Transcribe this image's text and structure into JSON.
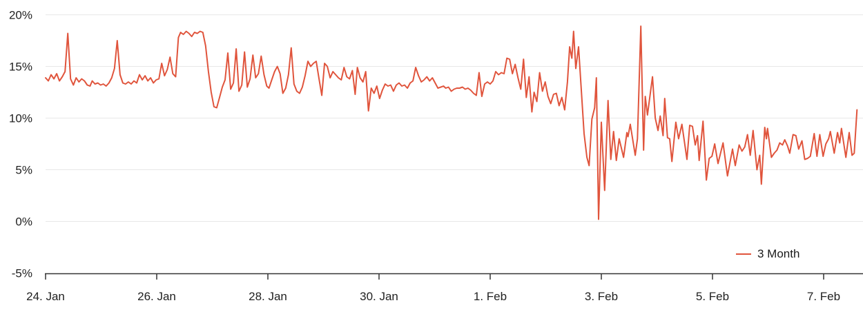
{
  "chart_data": {
    "type": "line",
    "title": "",
    "x_axis": {
      "unit": "days since 24 Jan 00:00",
      "range": [
        0,
        14.71
      ],
      "ticks": [
        {
          "t": 0,
          "label": "24. Jan"
        },
        {
          "t": 2,
          "label": "26. Jan"
        },
        {
          "t": 4,
          "label": "28. Jan"
        },
        {
          "t": 6,
          "label": "30. Jan"
        },
        {
          "t": 8,
          "label": "1. Feb"
        },
        {
          "t": 10,
          "label": "3. Feb"
        },
        {
          "t": 12,
          "label": "5. Feb"
        },
        {
          "t": 14,
          "label": "7. Feb"
        }
      ]
    },
    "y_axis": {
      "unit": "%",
      "range": [
        -5,
        20
      ],
      "gridlines_at": [
        20,
        15,
        10,
        5,
        0
      ],
      "ticks": [
        {
          "v": 20,
          "label": "20%"
        },
        {
          "v": 15,
          "label": "15%"
        },
        {
          "v": 10,
          "label": "10%"
        },
        {
          "v": 5,
          "label": "5%"
        },
        {
          "v": 0,
          "label": "0%"
        },
        {
          "v": -5,
          "label": "-5%"
        }
      ]
    },
    "legend": {
      "position": "bottom-right",
      "items": [
        {
          "label": "3 Month",
          "color": "#e0543c"
        }
      ]
    },
    "colors": {
      "series": "#e0543c",
      "gridline": "#e7e7e7",
      "axis": "#333333",
      "label": "#212121",
      "background": "#ffffff"
    },
    "series": [
      {
        "name": "3 Month",
        "color": "#e0543c",
        "points": [
          [
            0.0,
            13.9
          ],
          [
            0.05,
            13.6
          ],
          [
            0.1,
            14.2
          ],
          [
            0.15,
            13.8
          ],
          [
            0.2,
            14.3
          ],
          [
            0.25,
            13.6
          ],
          [
            0.3,
            14.0
          ],
          [
            0.35,
            14.5
          ],
          [
            0.4,
            18.2
          ],
          [
            0.45,
            13.8
          ],
          [
            0.5,
            13.2
          ],
          [
            0.55,
            13.9
          ],
          [
            0.6,
            13.5
          ],
          [
            0.65,
            13.8
          ],
          [
            0.7,
            13.6
          ],
          [
            0.75,
            13.2
          ],
          [
            0.8,
            13.1
          ],
          [
            0.84,
            13.6
          ],
          [
            0.89,
            13.3
          ],
          [
            0.94,
            13.4
          ],
          [
            0.99,
            13.2
          ],
          [
            1.04,
            13.3
          ],
          [
            1.09,
            13.1
          ],
          [
            1.14,
            13.4
          ],
          [
            1.19,
            13.9
          ],
          [
            1.24,
            14.8
          ],
          [
            1.29,
            17.5
          ],
          [
            1.34,
            14.2
          ],
          [
            1.39,
            13.4
          ],
          [
            1.44,
            13.3
          ],
          [
            1.49,
            13.5
          ],
          [
            1.54,
            13.3
          ],
          [
            1.59,
            13.6
          ],
          [
            1.64,
            13.4
          ],
          [
            1.69,
            14.2
          ],
          [
            1.74,
            13.7
          ],
          [
            1.79,
            14.1
          ],
          [
            1.84,
            13.6
          ],
          [
            1.89,
            13.9
          ],
          [
            1.94,
            13.4
          ],
          [
            1.99,
            13.7
          ],
          [
            2.04,
            13.8
          ],
          [
            2.09,
            15.3
          ],
          [
            2.14,
            14.1
          ],
          [
            2.19,
            14.7
          ],
          [
            2.24,
            15.9
          ],
          [
            2.29,
            14.3
          ],
          [
            2.34,
            14.0
          ],
          [
            2.39,
            17.8
          ],
          [
            2.43,
            18.3
          ],
          [
            2.48,
            18.1
          ],
          [
            2.53,
            18.4
          ],
          [
            2.58,
            18.2
          ],
          [
            2.63,
            17.9
          ],
          [
            2.68,
            18.3
          ],
          [
            2.73,
            18.2
          ],
          [
            2.78,
            18.4
          ],
          [
            2.83,
            18.3
          ],
          [
            2.88,
            17.0
          ],
          [
            2.93,
            14.5
          ],
          [
            2.98,
            12.5
          ],
          [
            3.03,
            11.1
          ],
          [
            3.08,
            11.0
          ],
          [
            3.13,
            12.0
          ],
          [
            3.18,
            13.0
          ],
          [
            3.23,
            13.7
          ],
          [
            3.28,
            16.3
          ],
          [
            3.33,
            12.8
          ],
          [
            3.38,
            13.4
          ],
          [
            3.43,
            16.7
          ],
          [
            3.48,
            12.6
          ],
          [
            3.53,
            13.2
          ],
          [
            3.58,
            16.4
          ],
          [
            3.63,
            13.0
          ],
          [
            3.68,
            13.8
          ],
          [
            3.73,
            16.1
          ],
          [
            3.78,
            13.9
          ],
          [
            3.83,
            14.3
          ],
          [
            3.88,
            16.0
          ],
          [
            3.93,
            14.2
          ],
          [
            3.98,
            13.1
          ],
          [
            4.02,
            12.9
          ],
          [
            4.07,
            13.7
          ],
          [
            4.12,
            14.5
          ],
          [
            4.17,
            15.0
          ],
          [
            4.22,
            14.3
          ],
          [
            4.27,
            12.4
          ],
          [
            4.32,
            12.9
          ],
          [
            4.37,
            14.2
          ],
          [
            4.42,
            16.8
          ],
          [
            4.47,
            13.3
          ],
          [
            4.52,
            12.6
          ],
          [
            4.57,
            12.4
          ],
          [
            4.62,
            13.0
          ],
          [
            4.67,
            14.1
          ],
          [
            4.72,
            15.5
          ],
          [
            4.77,
            15.0
          ],
          [
            4.82,
            15.3
          ],
          [
            4.87,
            15.5
          ],
          [
            4.92,
            13.8
          ],
          [
            4.97,
            12.2
          ],
          [
            5.02,
            15.3
          ],
          [
            5.07,
            15.0
          ],
          [
            5.12,
            13.9
          ],
          [
            5.17,
            14.5
          ],
          [
            5.22,
            14.2
          ],
          [
            5.27,
            13.9
          ],
          [
            5.32,
            13.7
          ],
          [
            5.37,
            14.9
          ],
          [
            5.42,
            14.0
          ],
          [
            5.47,
            13.8
          ],
          [
            5.52,
            14.6
          ],
          [
            5.57,
            12.3
          ],
          [
            5.61,
            14.9
          ],
          [
            5.66,
            13.9
          ],
          [
            5.71,
            13.5
          ],
          [
            5.76,
            14.5
          ],
          [
            5.81,
            10.7
          ],
          [
            5.86,
            12.9
          ],
          [
            5.91,
            12.4
          ],
          [
            5.96,
            13.1
          ],
          [
            6.01,
            11.9
          ],
          [
            6.06,
            12.7
          ],
          [
            6.11,
            13.3
          ],
          [
            6.16,
            13.1
          ],
          [
            6.21,
            13.2
          ],
          [
            6.26,
            12.6
          ],
          [
            6.31,
            13.2
          ],
          [
            6.36,
            13.4
          ],
          [
            6.41,
            13.1
          ],
          [
            6.46,
            13.2
          ],
          [
            6.51,
            12.9
          ],
          [
            6.56,
            13.4
          ],
          [
            6.61,
            13.6
          ],
          [
            6.66,
            14.9
          ],
          [
            6.71,
            14.1
          ],
          [
            6.76,
            13.5
          ],
          [
            6.81,
            13.7
          ],
          [
            6.86,
            14.0
          ],
          [
            6.91,
            13.6
          ],
          [
            6.96,
            13.9
          ],
          [
            7.01,
            13.4
          ],
          [
            7.06,
            12.9
          ],
          [
            7.11,
            13.0
          ],
          [
            7.16,
            13.1
          ],
          [
            7.2,
            12.9
          ],
          [
            7.25,
            13.0
          ],
          [
            7.3,
            12.6
          ],
          [
            7.35,
            12.8
          ],
          [
            7.4,
            12.9
          ],
          [
            7.45,
            12.9
          ],
          [
            7.5,
            13.0
          ],
          [
            7.55,
            12.8
          ],
          [
            7.6,
            12.9
          ],
          [
            7.65,
            12.7
          ],
          [
            7.7,
            12.4
          ],
          [
            7.75,
            12.2
          ],
          [
            7.8,
            14.4
          ],
          [
            7.85,
            12.1
          ],
          [
            7.9,
            13.3
          ],
          [
            7.95,
            13.5
          ],
          [
            8.0,
            13.3
          ],
          [
            8.05,
            13.6
          ],
          [
            8.1,
            14.5
          ],
          [
            8.15,
            14.2
          ],
          [
            8.2,
            14.4
          ],
          [
            8.25,
            14.3
          ],
          [
            8.3,
            15.8
          ],
          [
            8.35,
            15.7
          ],
          [
            8.4,
            14.3
          ],
          [
            8.45,
            15.2
          ],
          [
            8.5,
            13.9
          ],
          [
            8.55,
            12.8
          ],
          [
            8.6,
            15.7
          ],
          [
            8.65,
            12.0
          ],
          [
            8.7,
            14.0
          ],
          [
            8.75,
            10.6
          ],
          [
            8.79,
            12.5
          ],
          [
            8.84,
            11.6
          ],
          [
            8.89,
            14.4
          ],
          [
            8.94,
            12.6
          ],
          [
            8.99,
            13.5
          ],
          [
            9.04,
            12.1
          ],
          [
            9.09,
            11.4
          ],
          [
            9.14,
            12.3
          ],
          [
            9.19,
            12.4
          ],
          [
            9.24,
            11.2
          ],
          [
            9.29,
            12.0
          ],
          [
            9.34,
            10.8
          ],
          [
            9.39,
            13.5
          ],
          [
            9.43,
            16.9
          ],
          [
            9.47,
            15.8
          ],
          [
            9.5,
            18.4
          ],
          [
            9.54,
            14.8
          ],
          [
            9.59,
            16.9
          ],
          [
            9.64,
            12.7
          ],
          [
            9.69,
            8.5
          ],
          [
            9.74,
            6.2
          ],
          [
            9.78,
            5.4
          ],
          [
            9.83,
            9.9
          ],
          [
            9.88,
            11.0
          ],
          [
            9.91,
            13.9
          ],
          [
            9.95,
            0.2
          ],
          [
            10.0,
            9.6
          ],
          [
            10.06,
            3.0
          ],
          [
            10.12,
            11.7
          ],
          [
            10.17,
            6.0
          ],
          [
            10.22,
            8.7
          ],
          [
            10.27,
            5.9
          ],
          [
            10.32,
            8.0
          ],
          [
            10.4,
            6.2
          ],
          [
            10.46,
            8.6
          ],
          [
            10.48,
            8.2
          ],
          [
            10.52,
            9.4
          ],
          [
            10.61,
            6.4
          ],
          [
            10.65,
            8.0
          ],
          [
            10.71,
            18.9
          ],
          [
            10.76,
            6.9
          ],
          [
            10.79,
            12.1
          ],
          [
            10.83,
            10.3
          ],
          [
            10.92,
            14.0
          ],
          [
            10.97,
            10.0
          ],
          [
            11.02,
            8.8
          ],
          [
            11.06,
            10.2
          ],
          [
            11.11,
            8.3
          ],
          [
            11.14,
            11.9
          ],
          [
            11.19,
            8.1
          ],
          [
            11.23,
            8.0
          ],
          [
            11.27,
            5.8
          ],
          [
            11.34,
            9.6
          ],
          [
            11.39,
            8.0
          ],
          [
            11.45,
            9.4
          ],
          [
            11.54,
            6.0
          ],
          [
            11.59,
            9.3
          ],
          [
            11.64,
            9.2
          ],
          [
            11.69,
            7.4
          ],
          [
            11.73,
            8.3
          ],
          [
            11.76,
            5.9
          ],
          [
            11.83,
            9.7
          ],
          [
            11.89,
            4.0
          ],
          [
            11.94,
            6.1
          ],
          [
            11.99,
            6.3
          ],
          [
            12.04,
            7.5
          ],
          [
            12.1,
            5.6
          ],
          [
            12.19,
            7.6
          ],
          [
            12.27,
            4.4
          ],
          [
            12.36,
            7.0
          ],
          [
            12.41,
            5.4
          ],
          [
            12.48,
            7.4
          ],
          [
            12.53,
            6.8
          ],
          [
            12.58,
            7.2
          ],
          [
            12.63,
            8.4
          ],
          [
            12.68,
            6.4
          ],
          [
            12.73,
            8.8
          ],
          [
            12.8,
            5.0
          ],
          [
            12.85,
            6.4
          ],
          [
            12.88,
            3.6
          ],
          [
            12.94,
            9.1
          ],
          [
            12.97,
            8.0
          ],
          [
            12.99,
            9.0
          ],
          [
            13.06,
            6.2
          ],
          [
            13.11,
            6.6
          ],
          [
            13.16,
            6.9
          ],
          [
            13.21,
            7.6
          ],
          [
            13.26,
            7.4
          ],
          [
            13.3,
            7.9
          ],
          [
            13.35,
            7.3
          ],
          [
            13.39,
            6.6
          ],
          [
            13.45,
            8.4
          ],
          [
            13.5,
            8.3
          ],
          [
            13.55,
            7.0
          ],
          [
            13.61,
            7.8
          ],
          [
            13.66,
            6.0
          ],
          [
            13.71,
            6.1
          ],
          [
            13.76,
            6.3
          ],
          [
            13.83,
            8.5
          ],
          [
            13.88,
            6.3
          ],
          [
            13.93,
            8.4
          ],
          [
            13.99,
            6.3
          ],
          [
            14.04,
            7.5
          ],
          [
            14.09,
            8.0
          ],
          [
            14.12,
            8.7
          ],
          [
            14.19,
            6.6
          ],
          [
            14.25,
            8.6
          ],
          [
            14.29,
            7.6
          ],
          [
            14.32,
            9.0
          ],
          [
            14.4,
            6.2
          ],
          [
            14.46,
            8.6
          ],
          [
            14.51,
            6.4
          ],
          [
            14.55,
            6.6
          ],
          [
            14.6,
            10.8
          ]
        ]
      }
    ]
  }
}
